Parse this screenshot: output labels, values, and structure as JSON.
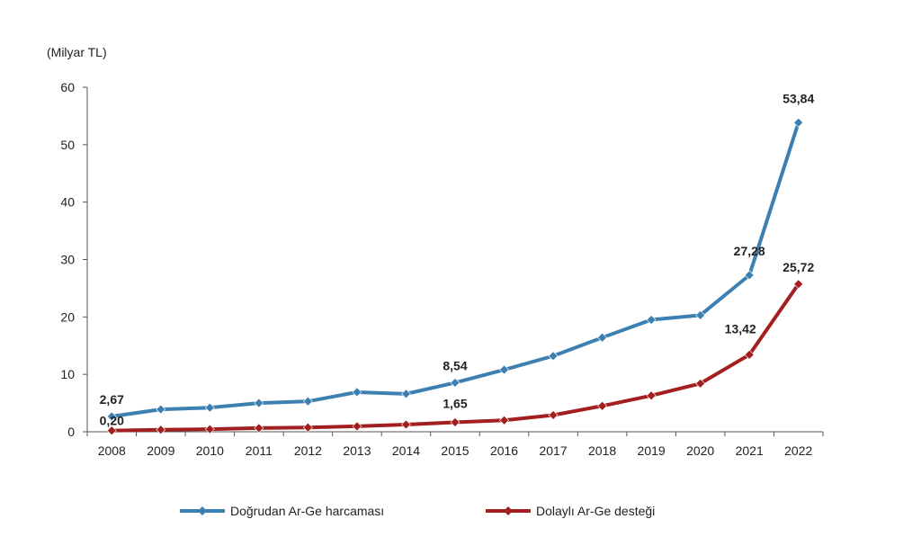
{
  "chart_data": {
    "type": "line",
    "unit_label": "(Milyar TL)",
    "categories": [
      "2008",
      "2009",
      "2010",
      "2011",
      "2012",
      "2013",
      "2014",
      "2015",
      "2016",
      "2017",
      "2018",
      "2019",
      "2020",
      "2021",
      "2022"
    ],
    "series": [
      {
        "name": "Doğrudan Ar-Ge harcaması",
        "color": "#3c7fb1",
        "values": [
          2.67,
          3.9,
          4.2,
          5.0,
          5.3,
          6.9,
          6.6,
          8.54,
          10.8,
          13.2,
          16.4,
          19.5,
          20.3,
          27.28,
          53.84
        ],
        "labels": [
          {
            "index": 0,
            "text": "2,67"
          },
          {
            "index": 7,
            "text": "8,54"
          },
          {
            "index": 13,
            "text": "27,28"
          },
          {
            "index": 14,
            "text": "53,84"
          }
        ]
      },
      {
        "name": "Dolaylı Ar-Ge desteği",
        "color": "#a31f1f",
        "values": [
          0.2,
          0.35,
          0.45,
          0.65,
          0.75,
          0.95,
          1.25,
          1.65,
          2.0,
          2.9,
          4.5,
          6.3,
          8.4,
          13.42,
          25.72
        ],
        "labels": [
          {
            "index": 0,
            "text": "0,20"
          },
          {
            "index": 7,
            "text": "1,65"
          },
          {
            "index": 13,
            "text": "13,42"
          },
          {
            "index": 14,
            "text": "25,72"
          }
        ]
      }
    ],
    "ylim": [
      0,
      60
    ],
    "yticks": [
      "0",
      "10",
      "20",
      "30",
      "40",
      "50",
      "60"
    ],
    "legend_position": "bottom",
    "grid": false
  }
}
